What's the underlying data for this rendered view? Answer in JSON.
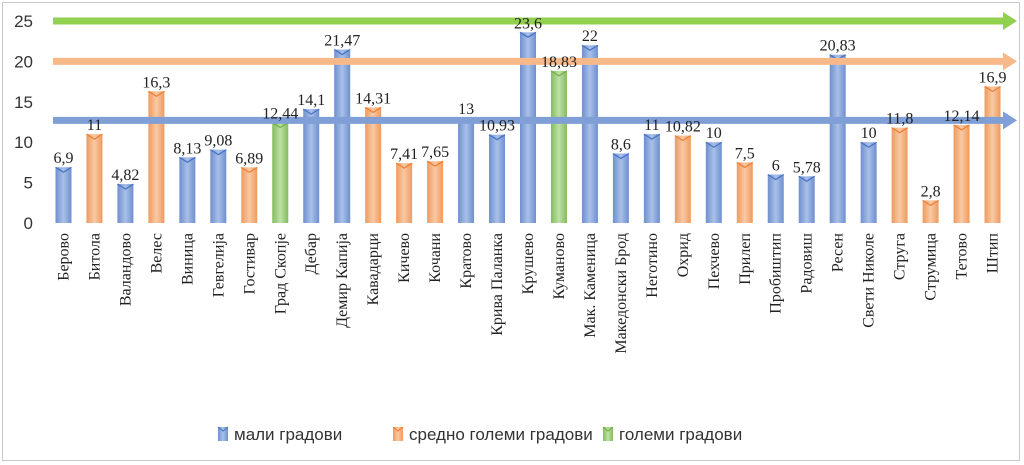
{
  "chart_data": {
    "type": "bar",
    "title": "",
    "xlabel": "",
    "ylabel": "",
    "ylim": [
      0,
      25
    ],
    "yticks": [
      0,
      5,
      10,
      15,
      20,
      25
    ],
    "categories": [
      "Берово",
      "Битола",
      "Валандово",
      "Велес",
      "Виница",
      "Гевгелија",
      "Гостивар",
      "Град Скопје",
      "Дебар",
      "Демир Капија",
      "Кавадарци",
      "Кичево",
      "Кочани",
      "Кратово",
      "Крива Паланка",
      "Крушево",
      "Куманово",
      "Мак. Каменица",
      "Македонски Брод",
      "Неготино",
      "Охрид",
      "Пехчево",
      "Прилеп",
      "Пробиштип",
      "Радовиш",
      "Ресен",
      "Свети Николе",
      "Струга",
      "Струмица",
      "Тетово",
      "Штип"
    ],
    "values": [
      6.9,
      11,
      4.82,
      16.3,
      8.13,
      9.08,
      6.89,
      12.44,
      14.1,
      21.47,
      14.31,
      7.41,
      7.65,
      13,
      10.93,
      23.6,
      18.83,
      22,
      8.6,
      11,
      10.82,
      10,
      7.5,
      6,
      5.78,
      20.83,
      10,
      11.8,
      2.8,
      12.14,
      16.9
    ],
    "labels": [
      "6,9",
      "11",
      "4,82",
      "16,3",
      "8,13",
      "9,08",
      "6,89",
      "12,44",
      "14,1",
      "21,47",
      "14,31",
      "7,41",
      "7,65",
      "13",
      "10,93",
      "23,6",
      "18,83",
      "22",
      "8,6",
      "11",
      "10,82",
      "10",
      "7,5",
      "6",
      "5,78",
      "20,83",
      "10",
      "11,8",
      "2,8",
      "12,14",
      "16,9"
    ],
    "groups": [
      0,
      1,
      0,
      1,
      0,
      0,
      1,
      2,
      0,
      0,
      1,
      1,
      1,
      0,
      0,
      0,
      2,
      0,
      0,
      0,
      1,
      0,
      1,
      0,
      0,
      0,
      0,
      1,
      1,
      1,
      1
    ],
    "series": [
      {
        "name": "мали градови",
        "color": "#8eaadb",
        "dark": "#4472c4"
      },
      {
        "name": "средно големи градови",
        "color": "#f4b183",
        "dark": "#ed7d31"
      },
      {
        "name": "големи градови",
        "color": "#a9d18e",
        "dark": "#70ad47"
      }
    ],
    "reference_arrows": [
      {
        "value": 25,
        "color": "#92d050"
      },
      {
        "value": 20,
        "color": "#f8b98a"
      },
      {
        "value": 12.7,
        "color": "#7f9fd6"
      }
    ],
    "grid": false,
    "legend_position": "bottom"
  }
}
